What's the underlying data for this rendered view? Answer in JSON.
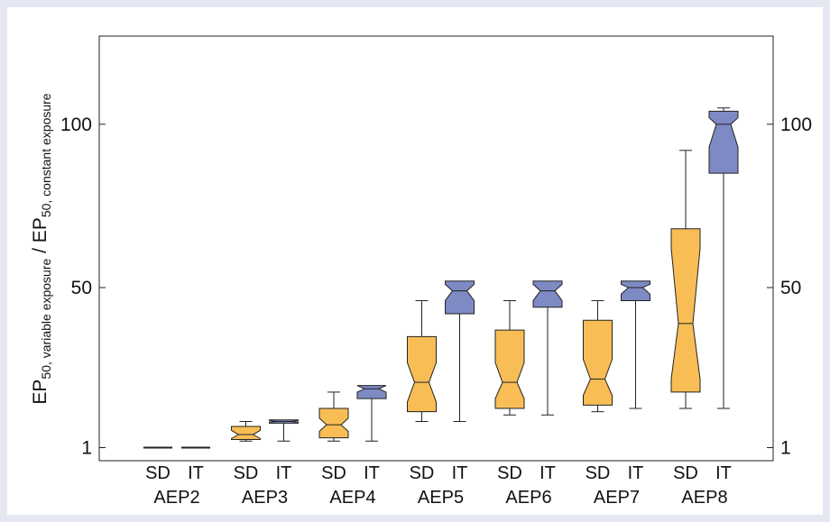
{
  "chart_data": {
    "type": "box",
    "yticks": [
      1,
      50,
      100
    ],
    "ylim": [
      -3,
      127
    ],
    "ylabel": {
      "main1": "EP",
      "sub1": "50, variable exposure",
      "sep": " / ",
      "main2": "EP",
      "sub2": "50, constant exposure"
    },
    "groups": [
      "AEP2",
      "AEP3",
      "AEP4",
      "AEP5",
      "AEP6",
      "AEP7",
      "AEP8"
    ],
    "methods": [
      "SD",
      "IT"
    ],
    "colors": {
      "SD": "#f8be55",
      "IT": "#7e8ac4",
      "line": "#222222"
    },
    "boxes": [
      {
        "group": "AEP2",
        "method": "SD",
        "min": 1,
        "q1": 1,
        "median": 1,
        "q3": 1,
        "max": 1,
        "notch_lo": 1,
        "notch_hi": 1
      },
      {
        "group": "AEP2",
        "method": "IT",
        "min": 1,
        "q1": 1,
        "median": 1,
        "q3": 1,
        "max": 1,
        "notch_lo": 1,
        "notch_hi": 1
      },
      {
        "group": "AEP3",
        "method": "SD",
        "min": 3,
        "q1": 3.5,
        "median": 5,
        "q3": 7.5,
        "max": 9,
        "notch_lo": 3.8,
        "notch_hi": 6.3
      },
      {
        "group": "AEP3",
        "method": "IT",
        "min": 3,
        "q1": 8.5,
        "median": 9,
        "q3": 9.5,
        "max": 9.5,
        "notch_lo": 8.8,
        "notch_hi": 9.3
      },
      {
        "group": "AEP4",
        "method": "SD",
        "min": 3,
        "q1": 4,
        "median": 8,
        "q3": 13,
        "max": 18,
        "notch_lo": 6,
        "notch_hi": 10
      },
      {
        "group": "AEP4",
        "method": "IT",
        "min": 3,
        "q1": 16,
        "median": 19,
        "q3": 20,
        "max": 20,
        "notch_lo": 18,
        "notch_hi": 20
      },
      {
        "group": "AEP5",
        "method": "SD",
        "min": 9,
        "q1": 12,
        "median": 21,
        "q3": 35,
        "max": 46,
        "notch_lo": 15,
        "notch_hi": 27
      },
      {
        "group": "AEP5",
        "method": "IT",
        "min": 9,
        "q1": 42,
        "median": 49,
        "q3": 52,
        "max": 52,
        "notch_lo": 46,
        "notch_hi": 51
      },
      {
        "group": "AEP6",
        "method": "SD",
        "min": 11,
        "q1": 13,
        "median": 21,
        "q3": 37,
        "max": 46,
        "notch_lo": 16,
        "notch_hi": 27
      },
      {
        "group": "AEP6",
        "method": "IT",
        "min": 11,
        "q1": 44,
        "median": 49,
        "q3": 52,
        "max": 52,
        "notch_lo": 46,
        "notch_hi": 51
      },
      {
        "group": "AEP7",
        "method": "SD",
        "min": 12,
        "q1": 14,
        "median": 22,
        "q3": 40,
        "max": 46,
        "notch_lo": 17,
        "notch_hi": 28
      },
      {
        "group": "AEP7",
        "method": "IT",
        "min": 13,
        "q1": 46,
        "median": 50,
        "q3": 52,
        "max": 52,
        "notch_lo": 48,
        "notch_hi": 51
      },
      {
        "group": "AEP8",
        "method": "SD",
        "min": 13,
        "q1": 18,
        "median": 39,
        "q3": 68,
        "max": 92,
        "notch_lo": 22,
        "notch_hi": 62
      },
      {
        "group": "AEP8",
        "method": "IT",
        "min": 13,
        "q1": 85,
        "median": 100,
        "q3": 104,
        "max": 105,
        "notch_lo": 93,
        "notch_hi": 102
      }
    ]
  }
}
